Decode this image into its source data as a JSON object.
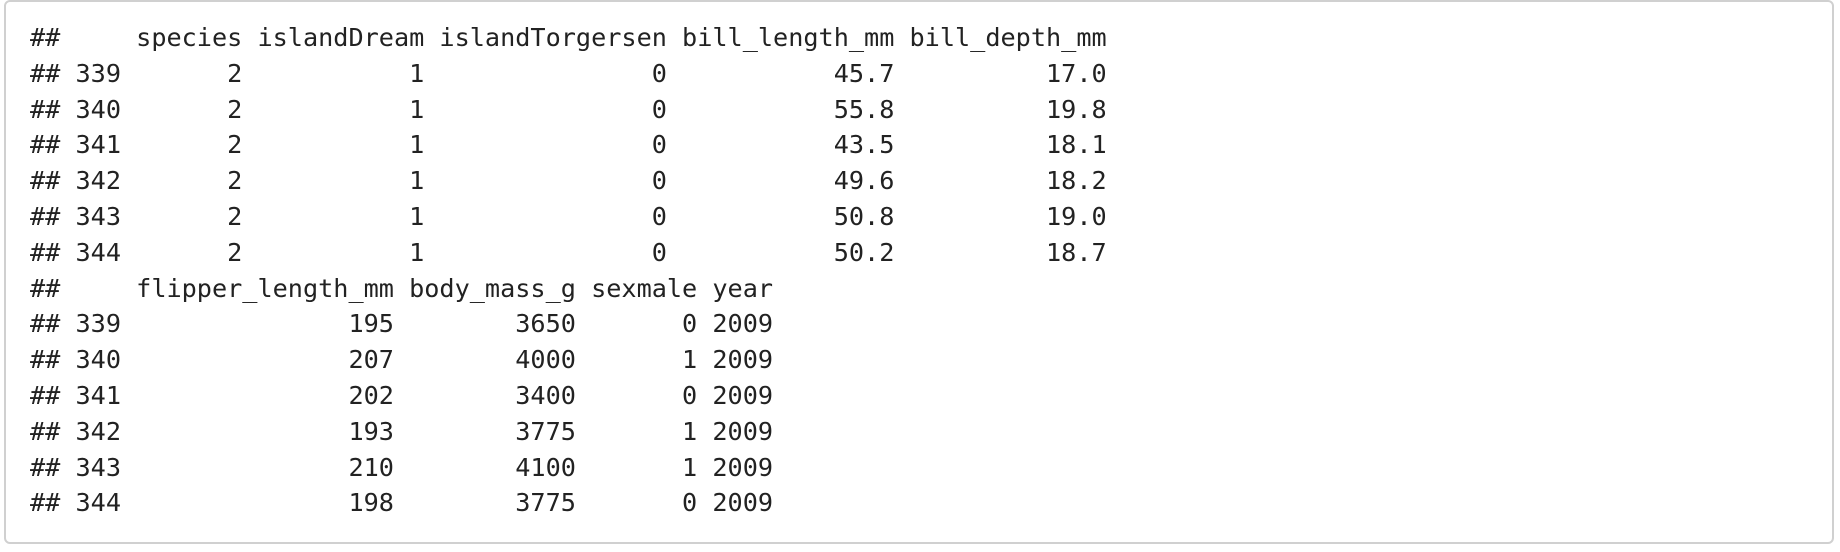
{
  "output": {
    "lines": [
      "##     species islandDream islandTorgersen bill_length_mm bill_depth_mm",
      "## 339       2           1               0           45.7          17.0",
      "## 340       2           1               0           55.8          19.8",
      "## 341       2           1               0           43.5          18.1",
      "## 342       2           1               0           49.6          18.2",
      "## 343       2           1               0           50.8          19.0",
      "## 344       2           1               0           50.2          18.7",
      "##     flipper_length_mm body_mass_g sexmale year",
      "## 339               195        3650       0 2009",
      "## 340               207        4000       1 2009",
      "## 341               202        3400       0 2009",
      "## 342               193        3775       1 2009",
      "## 343               210        4100       1 2009",
      "## 344               198        3775       0 2009"
    ]
  }
}
